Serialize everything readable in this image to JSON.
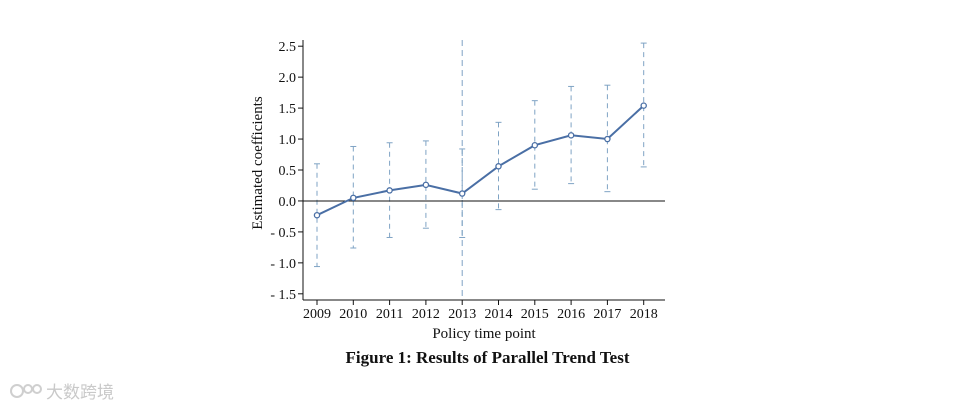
{
  "chart_data": {
    "type": "line",
    "title": "",
    "xlabel": "Policy time point",
    "ylabel": "Estimated coefficients",
    "categories": [
      "2009",
      "2010",
      "2011",
      "2012",
      "2013",
      "2014",
      "2015",
      "2016",
      "2017",
      "2018"
    ],
    "series": [
      {
        "values": [
          -0.23,
          0.05,
          0.17,
          0.26,
          0.12,
          0.56,
          0.9,
          1.06,
          1.0,
          1.54
        ],
        "ci_lower": [
          -1.06,
          -0.76,
          -0.59,
          -0.44,
          -0.59,
          -0.14,
          0.19,
          0.28,
          0.15,
          0.55
        ],
        "ci_upper": [
          0.6,
          0.88,
          0.94,
          0.97,
          0.84,
          1.27,
          1.62,
          1.85,
          1.87,
          2.55
        ]
      }
    ],
    "ylim": [
      -1.6,
      2.6
    ],
    "yticks": [
      "- 1.5",
      "- 1.0",
      "- 0.5",
      "0.0",
      "0.5",
      "1.0",
      "1.5",
      "2.0",
      "2.5"
    ],
    "ytick_values": [
      -1.5,
      -1.0,
      -0.5,
      0.0,
      0.5,
      1.0,
      1.5,
      2.0,
      2.5
    ],
    "reference_line_y": 0.0,
    "reference_line_x": "2013",
    "grid": false,
    "colors": {
      "line": "#4a6fa5",
      "error_bar": "#7fa3c4",
      "axis": "#111111"
    }
  },
  "caption": "Figure 1: Results of Parallel Trend Test",
  "watermark": {
    "text": "大数跨境",
    "color": "#c9c9c9"
  }
}
